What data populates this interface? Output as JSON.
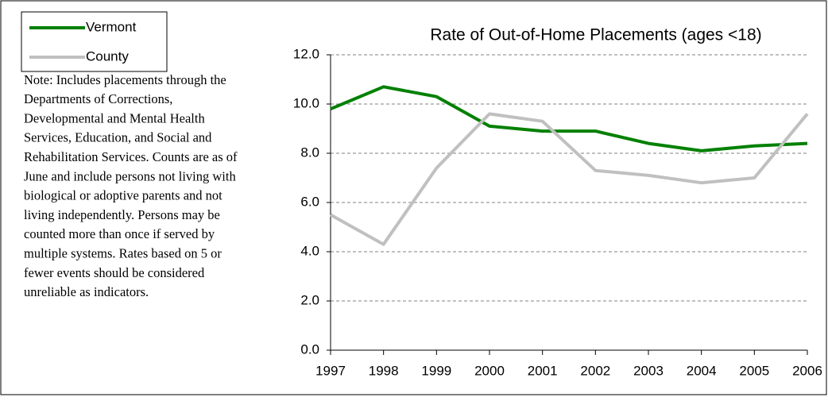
{
  "chart_data": {
    "type": "line",
    "title": "Rate of Out-of-Home Placements (ages <18)",
    "note": [
      "Note: Includes placements through the",
      "Departments of Corrections,",
      "Developmental and Mental Health",
      "Services, Education, and Social and",
      "Rehabilitation Services.  Counts are as of",
      "June and include persons not living with",
      "biological or adoptive parents and not",
      "living independently.  Persons may be",
      "counted more than once if served by",
      "multiple systems.  Rates based on 5 or",
      "fewer events should be considered",
      "unreliable as indicators."
    ],
    "x": [
      1997,
      1998,
      1999,
      2000,
      2001,
      2002,
      2003,
      2004,
      2005,
      2006
    ],
    "series": [
      {
        "name": "Vermont",
        "color": "#008000",
        "values": [
          9.8,
          10.7,
          10.3,
          9.1,
          8.9,
          8.9,
          8.4,
          8.1,
          8.3,
          8.4
        ]
      },
      {
        "name": "County",
        "color": "#c0c0c0",
        "values": [
          5.5,
          4.3,
          7.4,
          9.6,
          9.3,
          7.3,
          7.1,
          6.8,
          7.0,
          9.6
        ]
      }
    ],
    "xlim": [
      1997,
      2006
    ],
    "xticks": [
      1997,
      1998,
      1999,
      2000,
      2001,
      2002,
      2003,
      2004,
      2005,
      2006
    ],
    "ylim": [
      0,
      12
    ],
    "yticks": [
      {
        "value": 0,
        "label": "0.0"
      },
      {
        "value": 2,
        "label": "2.0"
      },
      {
        "value": 4,
        "label": "4.0"
      },
      {
        "value": 6,
        "label": "6.0"
      },
      {
        "value": 8,
        "label": "8.0"
      },
      {
        "value": 10,
        "label": "10.0"
      },
      {
        "value": 12,
        "label": "12.0"
      }
    ],
    "grid": true
  }
}
